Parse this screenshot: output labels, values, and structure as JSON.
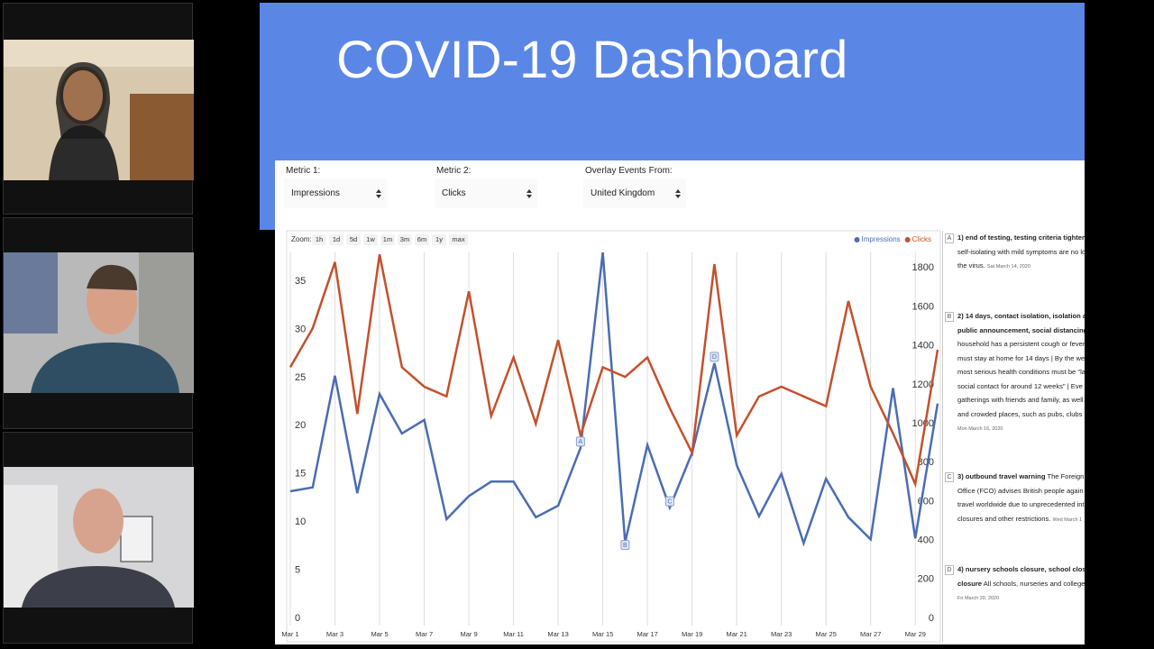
{
  "header": {
    "title": "COVID-19 Dashboard"
  },
  "controls": [
    {
      "label": "Metric 1:",
      "value": "Impressions"
    },
    {
      "label": "Metric 2:",
      "value": "Clicks"
    },
    {
      "label": "Overlay Events From:",
      "value": "United Kingdom"
    }
  ],
  "zoom": {
    "label": "Zoom:",
    "options": [
      "1h",
      "1d",
      "5d",
      "1w",
      "1m",
      "3m",
      "6m",
      "1y",
      "max"
    ]
  },
  "chart_data": {
    "type": "line",
    "x": [
      1,
      2,
      3,
      4,
      5,
      6,
      7,
      8,
      9,
      10,
      11,
      12,
      13,
      14,
      15,
      16,
      17,
      18,
      19,
      20,
      21,
      22,
      23,
      24,
      25,
      26,
      27,
      28,
      29,
      30
    ],
    "xlim": [
      1,
      30
    ],
    "xticks": [
      {
        "value": 1,
        "label": "Mar 1"
      },
      {
        "value": 3,
        "label": "Mar 3"
      },
      {
        "value": 5,
        "label": "Mar 5"
      },
      {
        "value": 7,
        "label": "Mar 7"
      },
      {
        "value": 9,
        "label": "Mar 9"
      },
      {
        "value": 11,
        "label": "Mar 11"
      },
      {
        "value": 13,
        "label": "Mar 13"
      },
      {
        "value": 15,
        "label": "Mar 15"
      },
      {
        "value": 17,
        "label": "Mar 17"
      },
      {
        "value": 19,
        "label": "Mar 19"
      },
      {
        "value": 21,
        "label": "Mar 21"
      },
      {
        "value": 23,
        "label": "Mar 23"
      },
      {
        "value": 25,
        "label": "Mar 25"
      },
      {
        "value": 27,
        "label": "Mar 27"
      },
      {
        "value": 29,
        "label": "Mar 29"
      }
    ],
    "series": [
      {
        "name": "Impressions",
        "color": "#4a6db3",
        "values": [
          13.2,
          13.6,
          25.2,
          13.0,
          23.3,
          19.2,
          20.6,
          10.3,
          12.7,
          14.2,
          14.2,
          10.5,
          11.7,
          17.7,
          38.0,
          7.9,
          18.0,
          11.5,
          17.2,
          26.5,
          15.9,
          10.6,
          15.0,
          7.8,
          14.5,
          10.5,
          8.2,
          23.9,
          8.3,
          22.3
        ]
      },
      {
        "name": "Clicks",
        "color": "#c4502c",
        "axis": "y2",
        "values": [
          1290,
          1490,
          1830,
          1050,
          1870,
          1290,
          1190,
          1140,
          1680,
          1040,
          1340,
          1000,
          1430,
          940,
          1290,
          1240,
          1340,
          1080,
          850,
          1820,
          940,
          1140,
          1190,
          1140,
          1090,
          1630,
          1190,
          950,
          690,
          1380
        ]
      }
    ],
    "ylim": [
      0,
      38
    ],
    "yticks": [
      0,
      5,
      10,
      15,
      20,
      25,
      30,
      35
    ],
    "y2lim": [
      0,
      1880
    ],
    "y2ticks": [
      0,
      200,
      400,
      600,
      800,
      1000,
      1200,
      1400,
      1600,
      1800
    ],
    "grid": "x",
    "legend": "top-right",
    "annotations": [
      {
        "text": "A",
        "x": 14
      },
      {
        "text": "B",
        "x": 16
      },
      {
        "text": "C",
        "x": 18
      },
      {
        "text": "D",
        "x": 20
      }
    ]
  },
  "events": [
    {
      "lines": [
        [
          {
            "text": "1) end of testing, testing criteria tighten",
            "style": "bold"
          }
        ],
        [
          {
            "text": "self-isolating with mild symptoms are no lo"
          }
        ],
        [
          {
            "text": "the virus. "
          },
          {
            "text": "Sat March 14, 2020",
            "style": "small"
          }
        ]
      ]
    },
    {
      "lines": [
        [
          {
            "text": "2) 14 days, contact isolation, isolation a",
            "style": "bold"
          }
        ],
        [
          {
            "text": "public announcement, social distancing",
            "style": "bold"
          }
        ],
        [
          {
            "text": "household has a persistent cough or fever"
          }
        ],
        [
          {
            "text": "must stay at home for 14 days | By the we"
          }
        ],
        [
          {
            "text": "most serious health conditions must be \"la"
          }
        ],
        [
          {
            "text": "social contact for around 12 weeks\" | Eve"
          }
        ],
        [
          {
            "text": "gatherings with friends and family, as well"
          }
        ],
        [
          {
            "text": "and crowded places, such as pubs, clubs"
          }
        ],
        [
          {
            "text": "Mon March 16, 2020",
            "style": "small"
          }
        ]
      ]
    },
    {
      "lines": [
        [
          {
            "text": "3) outbound travel warning",
            "style": "bold"
          },
          {
            "text": " The Foreign"
          }
        ],
        [
          {
            "text": "Office (FCO) advises British people again"
          }
        ],
        [
          {
            "text": "travel worldwide due to unprecedented int"
          }
        ],
        [
          {
            "text": "closures and other restrictions. "
          },
          {
            "text": "Wed March 1",
            "style": "small"
          }
        ]
      ]
    },
    {
      "lines": [
        [
          {
            "text": "4) nursery schools closure, school clos",
            "style": "bold"
          }
        ],
        [
          {
            "text": "closure",
            "style": "bold"
          },
          {
            "text": " All schools, nurseries and college"
          }
        ],
        [
          {
            "text": "Fri March 20, 2020",
            "style": "small"
          }
        ]
      ]
    }
  ]
}
